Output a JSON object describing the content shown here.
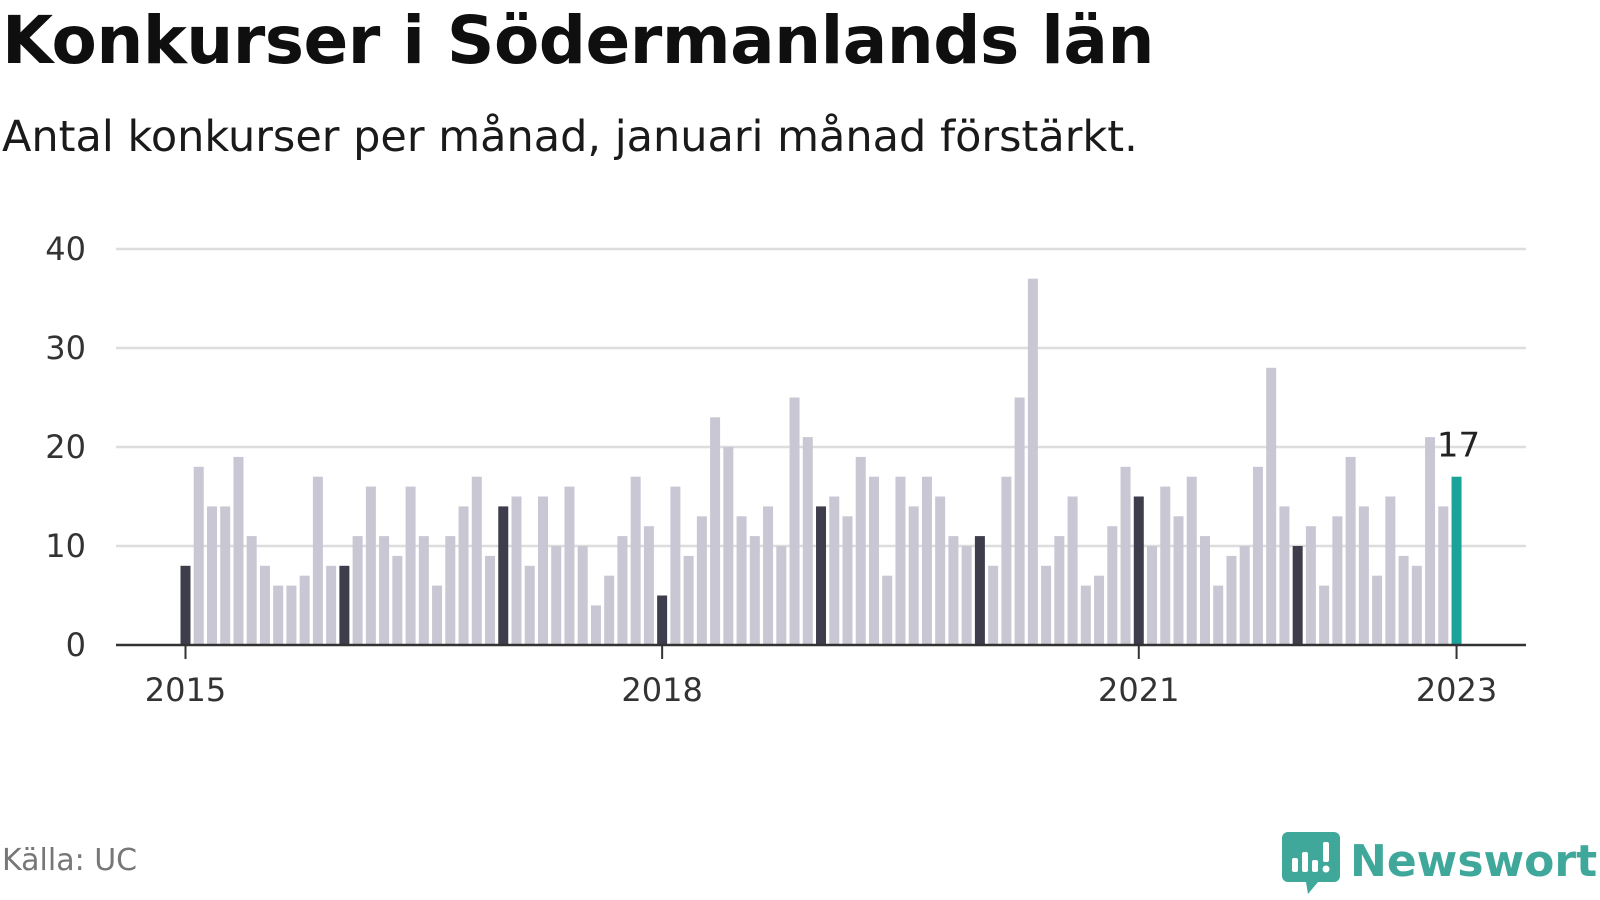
{
  "header": {
    "title": "Konkurser i Södermanlands län",
    "subtitle": "Antal konkurser per månad, januari månad förstärkt."
  },
  "footer": {
    "source": "Källa: UC",
    "brand": "Newsworthy"
  },
  "colors": {
    "bar_default": "#c8c7d3",
    "bar_january": "#3e3d4c",
    "bar_latest": "#1aa39a",
    "gridline": "#dddddd",
    "axis": "#333333",
    "brand": "#3fa89a"
  },
  "chart_data": {
    "type": "bar",
    "title": "Konkurser i Södermanlands län",
    "subtitle": "Antal konkurser per månad, januari månad förstärkt.",
    "xlabel": "",
    "ylabel": "",
    "ylim": [
      0,
      40
    ],
    "yticks": [
      0,
      10,
      20,
      30,
      40
    ],
    "grid": true,
    "start": "2015-01",
    "xticks": [
      {
        "label": "2015",
        "index": 0
      },
      {
        "label": "2018",
        "index": 36
      },
      {
        "label": "2021",
        "index": 72
      },
      {
        "label": "2023",
        "index": 96
      }
    ],
    "highlight": "january",
    "annotation": {
      "index": 96,
      "text": "17"
    },
    "values": [
      8,
      18,
      14,
      14,
      19,
      11,
      8,
      6,
      6,
      7,
      17,
      8,
      8,
      11,
      16,
      11,
      9,
      16,
      11,
      6,
      11,
      14,
      17,
      9,
      14,
      15,
      8,
      15,
      10,
      16,
      10,
      4,
      7,
      11,
      17,
      12,
      5,
      16,
      9,
      13,
      23,
      20,
      13,
      11,
      14,
      10,
      25,
      21,
      14,
      15,
      13,
      19,
      17,
      7,
      17,
      14,
      17,
      15,
      11,
      10,
      11,
      8,
      17,
      25,
      37,
      8,
      11,
      15,
      6,
      7,
      12,
      18,
      15,
      10,
      16,
      13,
      17,
      11,
      6,
      9,
      10,
      18,
      28,
      14,
      10,
      12,
      6,
      13,
      19,
      14,
      7,
      15,
      9,
      8,
      21,
      14,
      17
    ]
  }
}
